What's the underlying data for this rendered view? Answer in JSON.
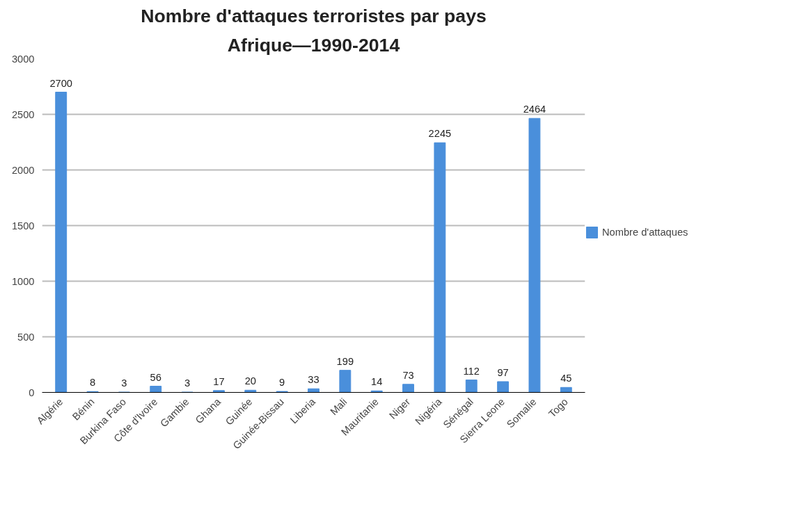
{
  "chart_data": {
    "type": "bar",
    "title": "Nombre d'attaques terroristes par pays",
    "subtitle": "Afrique—1990-2014",
    "categories": [
      "Algérie",
      "Bénin",
      "Burkina Faso",
      "Côte d'Ivoire",
      "Gambie",
      "Ghana",
      "Guinée",
      "Guinée-Bissau",
      "Liberia",
      "Mali",
      "Mauritanie",
      "Niger",
      "Nigéria",
      "Sénégal",
      "Sierra Leone",
      "Somalie",
      "Togo"
    ],
    "series": [
      {
        "name": "Nombre d'attaques",
        "color": "#4a8fdb",
        "values": [
          2700,
          8,
          3,
          56,
          3,
          17,
          20,
          9,
          33,
          199,
          14,
          73,
          2245,
          112,
          97,
          2464,
          45
        ]
      }
    ],
    "ylim": [
      0,
      3000
    ],
    "yticks": [
      0,
      500,
      1000,
      1500,
      2000,
      2500,
      3000
    ],
    "grid": "y",
    "legend": "right",
    "data_labels": true
  }
}
